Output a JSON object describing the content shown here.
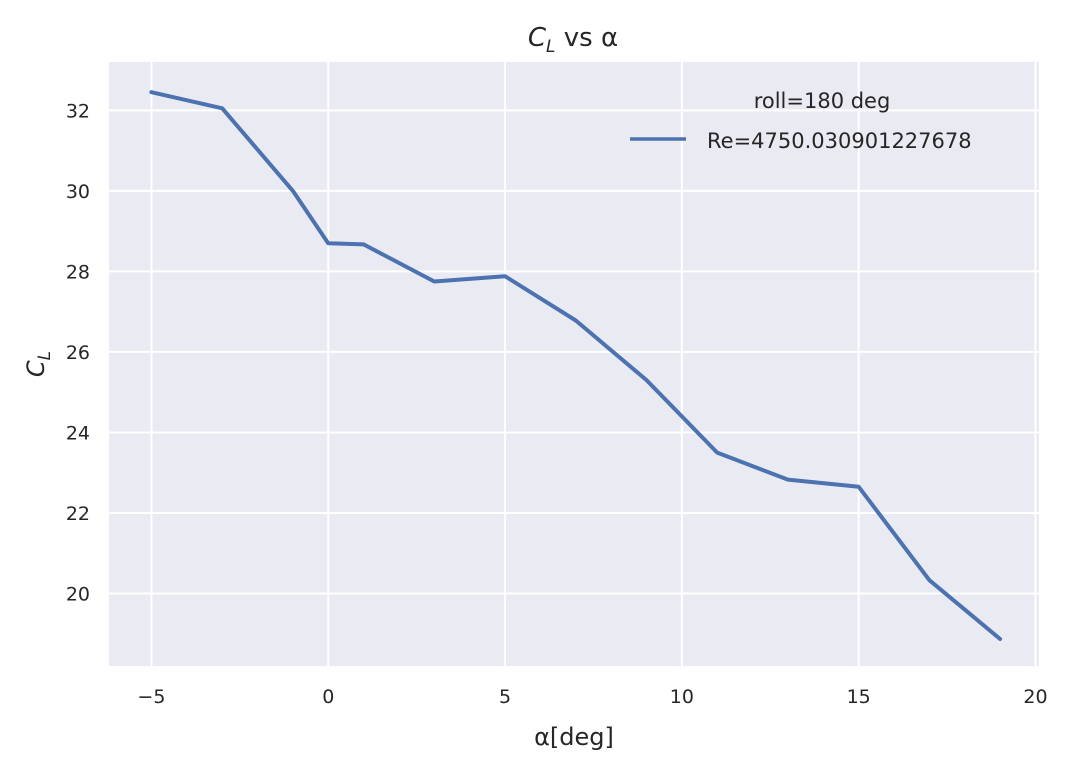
{
  "chart_data": {
    "type": "line",
    "title": {
      "main": "C",
      "sub": "L",
      "suffix": " vs α"
    },
    "xlabel": "α[deg]",
    "ylabel": {
      "main": "C",
      "sub": "L"
    },
    "legend_title": "roll=180 deg",
    "legend_position": "top-right",
    "grid": true,
    "xlim": [
      -6.2,
      20.1
    ],
    "ylim": [
      18.2,
      33.2
    ],
    "xticks": [
      -5,
      0,
      5,
      10,
      15,
      20
    ],
    "xtick_labels": [
      "−5",
      "0",
      "5",
      "10",
      "15",
      "20"
    ],
    "yticks": [
      20,
      22,
      24,
      26,
      28,
      30,
      32
    ],
    "ytick_labels": [
      "20",
      "22",
      "24",
      "26",
      "28",
      "30",
      "32"
    ],
    "series": [
      {
        "name": "Re=4750.030901227678",
        "color": "#4c72b0",
        "x": [
          -5,
          -3,
          -1,
          0,
          1,
          3,
          5,
          7,
          9,
          11,
          13,
          15,
          17,
          19
        ],
        "y": [
          32.45,
          32.05,
          30.0,
          28.7,
          28.67,
          27.75,
          27.88,
          26.78,
          25.3,
          23.5,
          22.83,
          22.65,
          20.33,
          18.87
        ]
      }
    ]
  }
}
